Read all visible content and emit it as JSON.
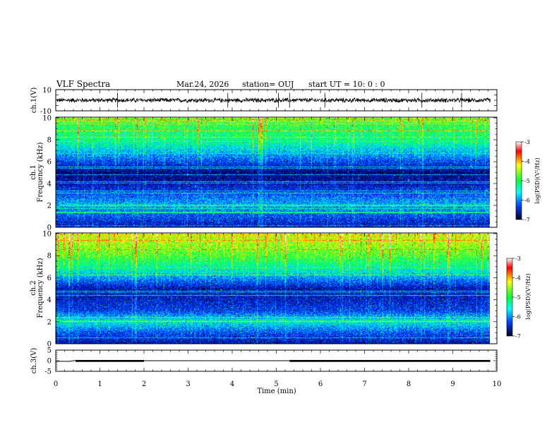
{
  "header": {
    "title": "VLF Spectra",
    "date": "Mar.24, 2026",
    "station": "station= OUJ",
    "start": "start  UT  =   10: 0  : 0"
  },
  "chart_data": [
    {
      "type": "line",
      "name": "ch1-waveform",
      "ylabel": "ch.1(V)",
      "ylim": [
        -10,
        10
      ],
      "yticks": [
        "10",
        "-10"
      ],
      "series": [
        {
          "name": "ch.1",
          "baseline": 0,
          "noise_amplitude": 2.2
        }
      ]
    },
    {
      "type": "heatmap",
      "name": "ch1-spectrogram",
      "ylabel_line1": "ch.1",
      "ylabel_line2": "Frequency (kHz)",
      "ylim": [
        0,
        10
      ],
      "yticks": [
        "0",
        "2",
        "4",
        "6",
        "8",
        "10"
      ],
      "colorbar": {
        "label": "log(PSD)(V²/Hz)",
        "range": [
          -7,
          -3
        ],
        "ticks": [
          "-3",
          "-4",
          "-5",
          "-6",
          "-7"
        ]
      },
      "intensity_profile": [
        {
          "freq_khz": 10,
          "log_psd": -5.0
        },
        {
          "freq_khz": 8,
          "log_psd": -5.3
        },
        {
          "freq_khz": 6.5,
          "log_psd": -6.0
        },
        {
          "freq_khz": 5,
          "log_psd": -6.8
        },
        {
          "freq_khz": 4,
          "log_psd": -6.6
        },
        {
          "freq_khz": 3,
          "log_psd": -6.2
        },
        {
          "freq_khz": 2,
          "log_psd": -5.8
        },
        {
          "freq_khz": 1,
          "log_psd": -6.2
        },
        {
          "freq_khz": 0,
          "log_psd": -6.6
        }
      ]
    },
    {
      "type": "heatmap",
      "name": "ch2-spectrogram",
      "ylabel_line1": "ch.2",
      "ylabel_line2": "Frequency (kHz)",
      "ylim": [
        0,
        10
      ],
      "yticks": [
        "0",
        "2",
        "4",
        "6",
        "8",
        "10"
      ],
      "colorbar": {
        "label": "log(PSD)(V²/Hz)",
        "range": [
          -7,
          -3
        ],
        "ticks": [
          "-3",
          "-4",
          "-5",
          "-6",
          "-7"
        ]
      },
      "intensity_profile": [
        {
          "freq_khz": 10,
          "log_psd": -4.4
        },
        {
          "freq_khz": 8,
          "log_psd": -4.9
        },
        {
          "freq_khz": 6.5,
          "log_psd": -5.6
        },
        {
          "freq_khz": 5,
          "log_psd": -6.6
        },
        {
          "freq_khz": 4,
          "log_psd": -6.5
        },
        {
          "freq_khz": 3,
          "log_psd": -6.3
        },
        {
          "freq_khz": 2,
          "log_psd": -5.5
        },
        {
          "freq_khz": 1,
          "log_psd": -6.2
        },
        {
          "freq_khz": 0,
          "log_psd": -6.6
        }
      ]
    },
    {
      "type": "line",
      "name": "ch3-signal",
      "ylabel": "ch.3(V)",
      "ylim": [
        -5,
        5
      ],
      "yticks": [
        "5",
        "0",
        "-5"
      ],
      "series": [
        {
          "name": "ch.3",
          "x_min": [
            0,
            0.3,
            0.45,
            2.0,
            5.3,
            9.85
          ],
          "y": [
            -0.3,
            -0.3,
            -0.3,
            0,
            -0.3,
            -0.3
          ]
        }
      ]
    }
  ],
  "xaxis": {
    "label": "Time  (min)",
    "xlim": [
      0,
      10
    ],
    "ticks": [
      "0",
      "1",
      "2",
      "3",
      "4",
      "5",
      "6",
      "7",
      "8",
      "9",
      "10"
    ]
  }
}
